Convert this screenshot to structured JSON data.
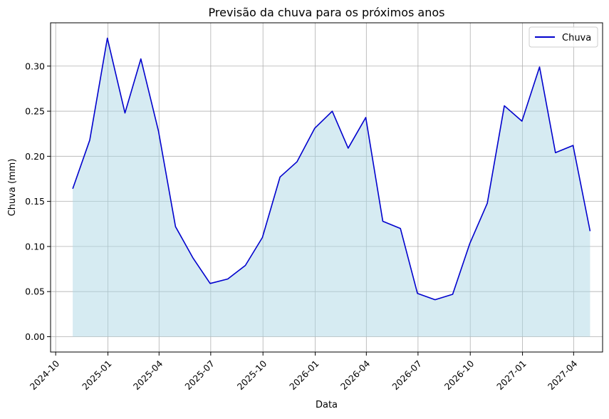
{
  "chart_data": {
    "type": "area",
    "title": "Previsão da chuva para os próximos anos",
    "xlabel": "Data",
    "ylabel": "Chuva (mm)",
    "x_tick_labels": [
      "2024-10",
      "2025-01",
      "2025-04",
      "2025-07",
      "2025-10",
      "2026-01",
      "2026-04",
      "2026-07",
      "2026-10",
      "2027-01",
      "2027-04"
    ],
    "y_ticks": [
      0.0,
      0.05,
      0.1,
      0.15,
      0.2,
      0.25,
      0.3
    ],
    "y_tick_labels": [
      "0.00",
      "0.05",
      "0.10",
      "0.15",
      "0.20",
      "0.25",
      "0.30"
    ],
    "ylim": [
      -0.017,
      0.348
    ],
    "xlim": [
      "2024-09-22",
      "2027-05-22"
    ],
    "grid": true,
    "legend_position": "top-right",
    "series": [
      {
        "name": "Chuva",
        "line_color": "#0000cd",
        "fill_color": "#add8e6",
        "fill_opacity": 0.5,
        "x": [
          "2024-10-31",
          "2024-11-30",
          "2024-12-31",
          "2025-01-31",
          "2025-02-28",
          "2025-03-31",
          "2025-04-30",
          "2025-05-31",
          "2025-06-30",
          "2025-07-31",
          "2025-08-31",
          "2025-09-30",
          "2025-10-31",
          "2025-11-30",
          "2025-12-31",
          "2026-01-31",
          "2026-02-28",
          "2026-03-31",
          "2026-04-30",
          "2026-05-31",
          "2026-06-30",
          "2026-07-31",
          "2026-08-31",
          "2026-09-30",
          "2026-10-31",
          "2026-11-30",
          "2026-12-31",
          "2027-01-31",
          "2027-02-28",
          "2027-03-31",
          "2027-04-30"
        ],
        "values": [
          0.164,
          0.218,
          0.331,
          0.248,
          0.308,
          0.228,
          0.122,
          0.087,
          0.059,
          0.064,
          0.079,
          0.11,
          0.177,
          0.194,
          0.231,
          0.25,
          0.209,
          0.243,
          0.128,
          0.12,
          0.048,
          0.041,
          0.047,
          0.103,
          0.148,
          0.256,
          0.239,
          0.299,
          0.204,
          0.212,
          0.117
        ]
      }
    ]
  }
}
